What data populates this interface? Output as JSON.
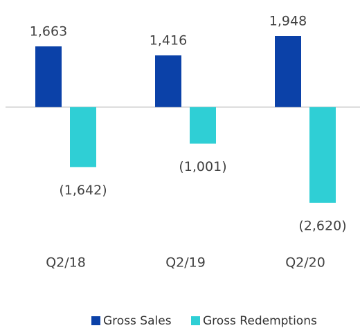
{
  "chart_data": {
    "type": "bar",
    "categories": [
      "Q2/18",
      "Q2/19",
      "Q2/20"
    ],
    "series": [
      {
        "name": "Gross Sales",
        "color": "#0b41a8",
        "values": [
          1663,
          1416,
          1948
        ],
        "value_labels": [
          "1,663",
          "1,416",
          "1,948"
        ]
      },
      {
        "name": "Gross Redemptions",
        "color": "#2fcfd5",
        "values": [
          -1642,
          -1001,
          -2620
        ],
        "value_labels": [
          "(1,642)",
          "(1,001)",
          "(2,620)"
        ]
      }
    ]
  }
}
